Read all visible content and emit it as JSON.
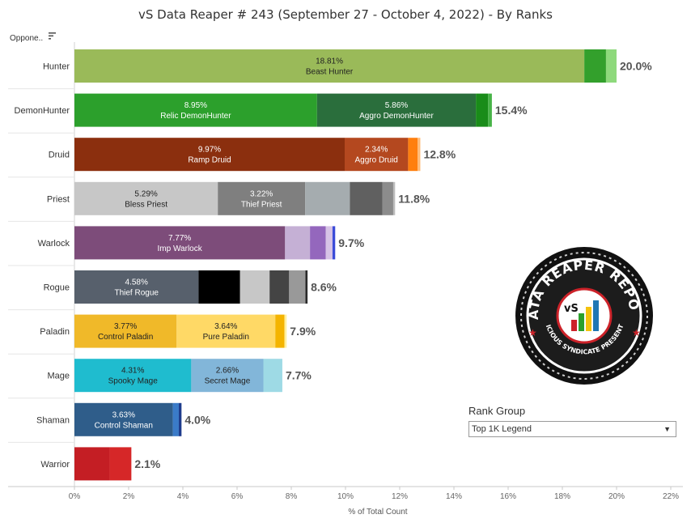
{
  "header": {
    "title": "vS Data Reaper #  243 (September 27 - October 4, 2022) - By Ranks"
  },
  "column_header": {
    "label": "Oppone..",
    "sort_icon": "sort-icon"
  },
  "controls": {
    "rank_group_label": "Rank Group",
    "rank_group_value": "Top 1K Legend",
    "dropdown_icon": "chevron-down-icon"
  },
  "logo": {
    "text_top": "DATA REAPER REPORT",
    "text_bottom": "VICIOUS SYNDICATE PRESENTS",
    "monogram": "vS"
  },
  "chart_data": {
    "type": "bar",
    "orientation": "horizontal",
    "stacked": true,
    "title": "vS Data Reaper #  243 (September 27 - October 4, 2022) - By Ranks",
    "xlabel": "% of Total Count",
    "ylabel": "",
    "xlim": [
      0,
      22
    ],
    "x_ticks": [
      "0%",
      "2%",
      "4%",
      "6%",
      "8%",
      "10%",
      "12%",
      "14%",
      "16%",
      "18%",
      "20%",
      "22%"
    ],
    "categories": [
      "Hunter",
      "DemonHunter",
      "Druid",
      "Priest",
      "Warlock",
      "Rogue",
      "Paladin",
      "Mage",
      "Shaman",
      "Warrior"
    ],
    "rows": [
      {
        "class": "Hunter",
        "total_label": "20.0%",
        "segments": [
          {
            "value": 18.81,
            "label": "18.81%",
            "name": "Beast Hunter",
            "color": "#9aba59",
            "text_color": "#222222"
          },
          {
            "value": 0.8,
            "color": "#33a02c"
          },
          {
            "value": 0.39,
            "color": "#8ed97c"
          }
        ]
      },
      {
        "class": "DemonHunter",
        "total_label": "15.4%",
        "segments": [
          {
            "value": 8.95,
            "label": "8.95%",
            "name": "Relic DemonHunter",
            "color": "#2ca02c",
            "text_color": "#ffffff"
          },
          {
            "value": 5.86,
            "label": "5.86%",
            "name": "Aggro DemonHunter",
            "color": "#2a6e3c",
            "text_color": "#ffffff"
          },
          {
            "value": 0.45,
            "color": "#198c19"
          },
          {
            "value": 0.14,
            "color": "#47b347"
          }
        ]
      },
      {
        "class": "Druid",
        "total_label": "12.8%",
        "segments": [
          {
            "value": 9.97,
            "label": "9.97%",
            "name": "Ramp Druid",
            "color": "#8b2f0e",
            "text_color": "#ffffff"
          },
          {
            "value": 2.34,
            "label": "2.34%",
            "name": "Aggro Druid",
            "color": "#b4481f",
            "text_color": "#ffffff"
          },
          {
            "value": 0.35,
            "color": "#ff7f0e"
          },
          {
            "value": 0.1,
            "color": "#ffbb78"
          }
        ]
      },
      {
        "class": "Priest",
        "total_label": "11.8%",
        "segments": [
          {
            "value": 5.29,
            "label": "5.29%",
            "name": "Bless Priest",
            "color": "#c7c7c7",
            "text_color": "#222222"
          },
          {
            "value": 3.22,
            "label": "3.22%",
            "name": "Thief Priest",
            "color": "#7f7f7f",
            "text_color": "#ffffff"
          },
          {
            "value": 1.65,
            "color": "#a5acaf"
          },
          {
            "value": 1.2,
            "color": "#606060"
          },
          {
            "value": 0.4,
            "color": "#8c8c8c"
          },
          {
            "value": 0.07,
            "color": "#bdbdbd"
          }
        ]
      },
      {
        "class": "Warlock",
        "total_label": "9.7%",
        "segments": [
          {
            "value": 7.77,
            "label": "7.77%",
            "name": "Imp Warlock",
            "color": "#7d4c7a",
            "text_color": "#ffffff"
          },
          {
            "value": 0.92,
            "color": "#c5b0d5"
          },
          {
            "value": 0.58,
            "color": "#9467bd"
          },
          {
            "value": 0.25,
            "color": "#d7c3e6"
          },
          {
            "value": 0.1,
            "color": "#3b4bd8"
          }
        ]
      },
      {
        "class": "Rogue",
        "total_label": "8.6%",
        "segments": [
          {
            "value": 4.58,
            "label": "4.58%",
            "name": "Thief Rogue",
            "color": "#57606c",
            "text_color": "#ffffff"
          },
          {
            "value": 1.53,
            "color": "#000000"
          },
          {
            "value": 1.09,
            "color": "#c7c7c7"
          },
          {
            "value": 0.72,
            "color": "#444444"
          },
          {
            "value": 0.6,
            "color": "#999999"
          },
          {
            "value": 0.08,
            "color": "#2b2b2b"
          }
        ]
      },
      {
        "class": "Paladin",
        "total_label": "7.9%",
        "segments": [
          {
            "value": 3.77,
            "label": "3.77%",
            "name": "Control Paladin",
            "color": "#f0b929",
            "text_color": "#222222"
          },
          {
            "value": 3.64,
            "label": "3.64%",
            "name": "Pure Paladin",
            "color": "#ffd966",
            "text_color": "#222222"
          },
          {
            "value": 0.34,
            "color": "#f4b400"
          },
          {
            "value": 0.08,
            "color": "#fff0a0"
          }
        ]
      },
      {
        "class": "Mage",
        "total_label": "7.7%",
        "segments": [
          {
            "value": 4.31,
            "label": "4.31%",
            "name": "Spooky Mage",
            "color": "#1fbccf",
            "text_color": "#222222"
          },
          {
            "value": 2.66,
            "label": "2.66%",
            "name": "Secret Mage",
            "color": "#82b6d9",
            "text_color": "#222222"
          },
          {
            "value": 0.7,
            "color": "#9edae5"
          }
        ]
      },
      {
        "class": "Shaman",
        "total_label": "4.0%",
        "segments": [
          {
            "value": 3.63,
            "label": "3.63%",
            "name": "Control Shaman",
            "color": "#2f5d8a",
            "text_color": "#ffffff"
          },
          {
            "value": 0.22,
            "color": "#3a7bc8"
          },
          {
            "value": 0.1,
            "color": "#1f3c8c"
          }
        ]
      },
      {
        "class": "Warrior",
        "total_label": "2.1%",
        "segments": [
          {
            "value": 1.3,
            "color": "#c41e24"
          },
          {
            "value": 0.8,
            "color": "#d62728"
          }
        ]
      }
    ]
  }
}
